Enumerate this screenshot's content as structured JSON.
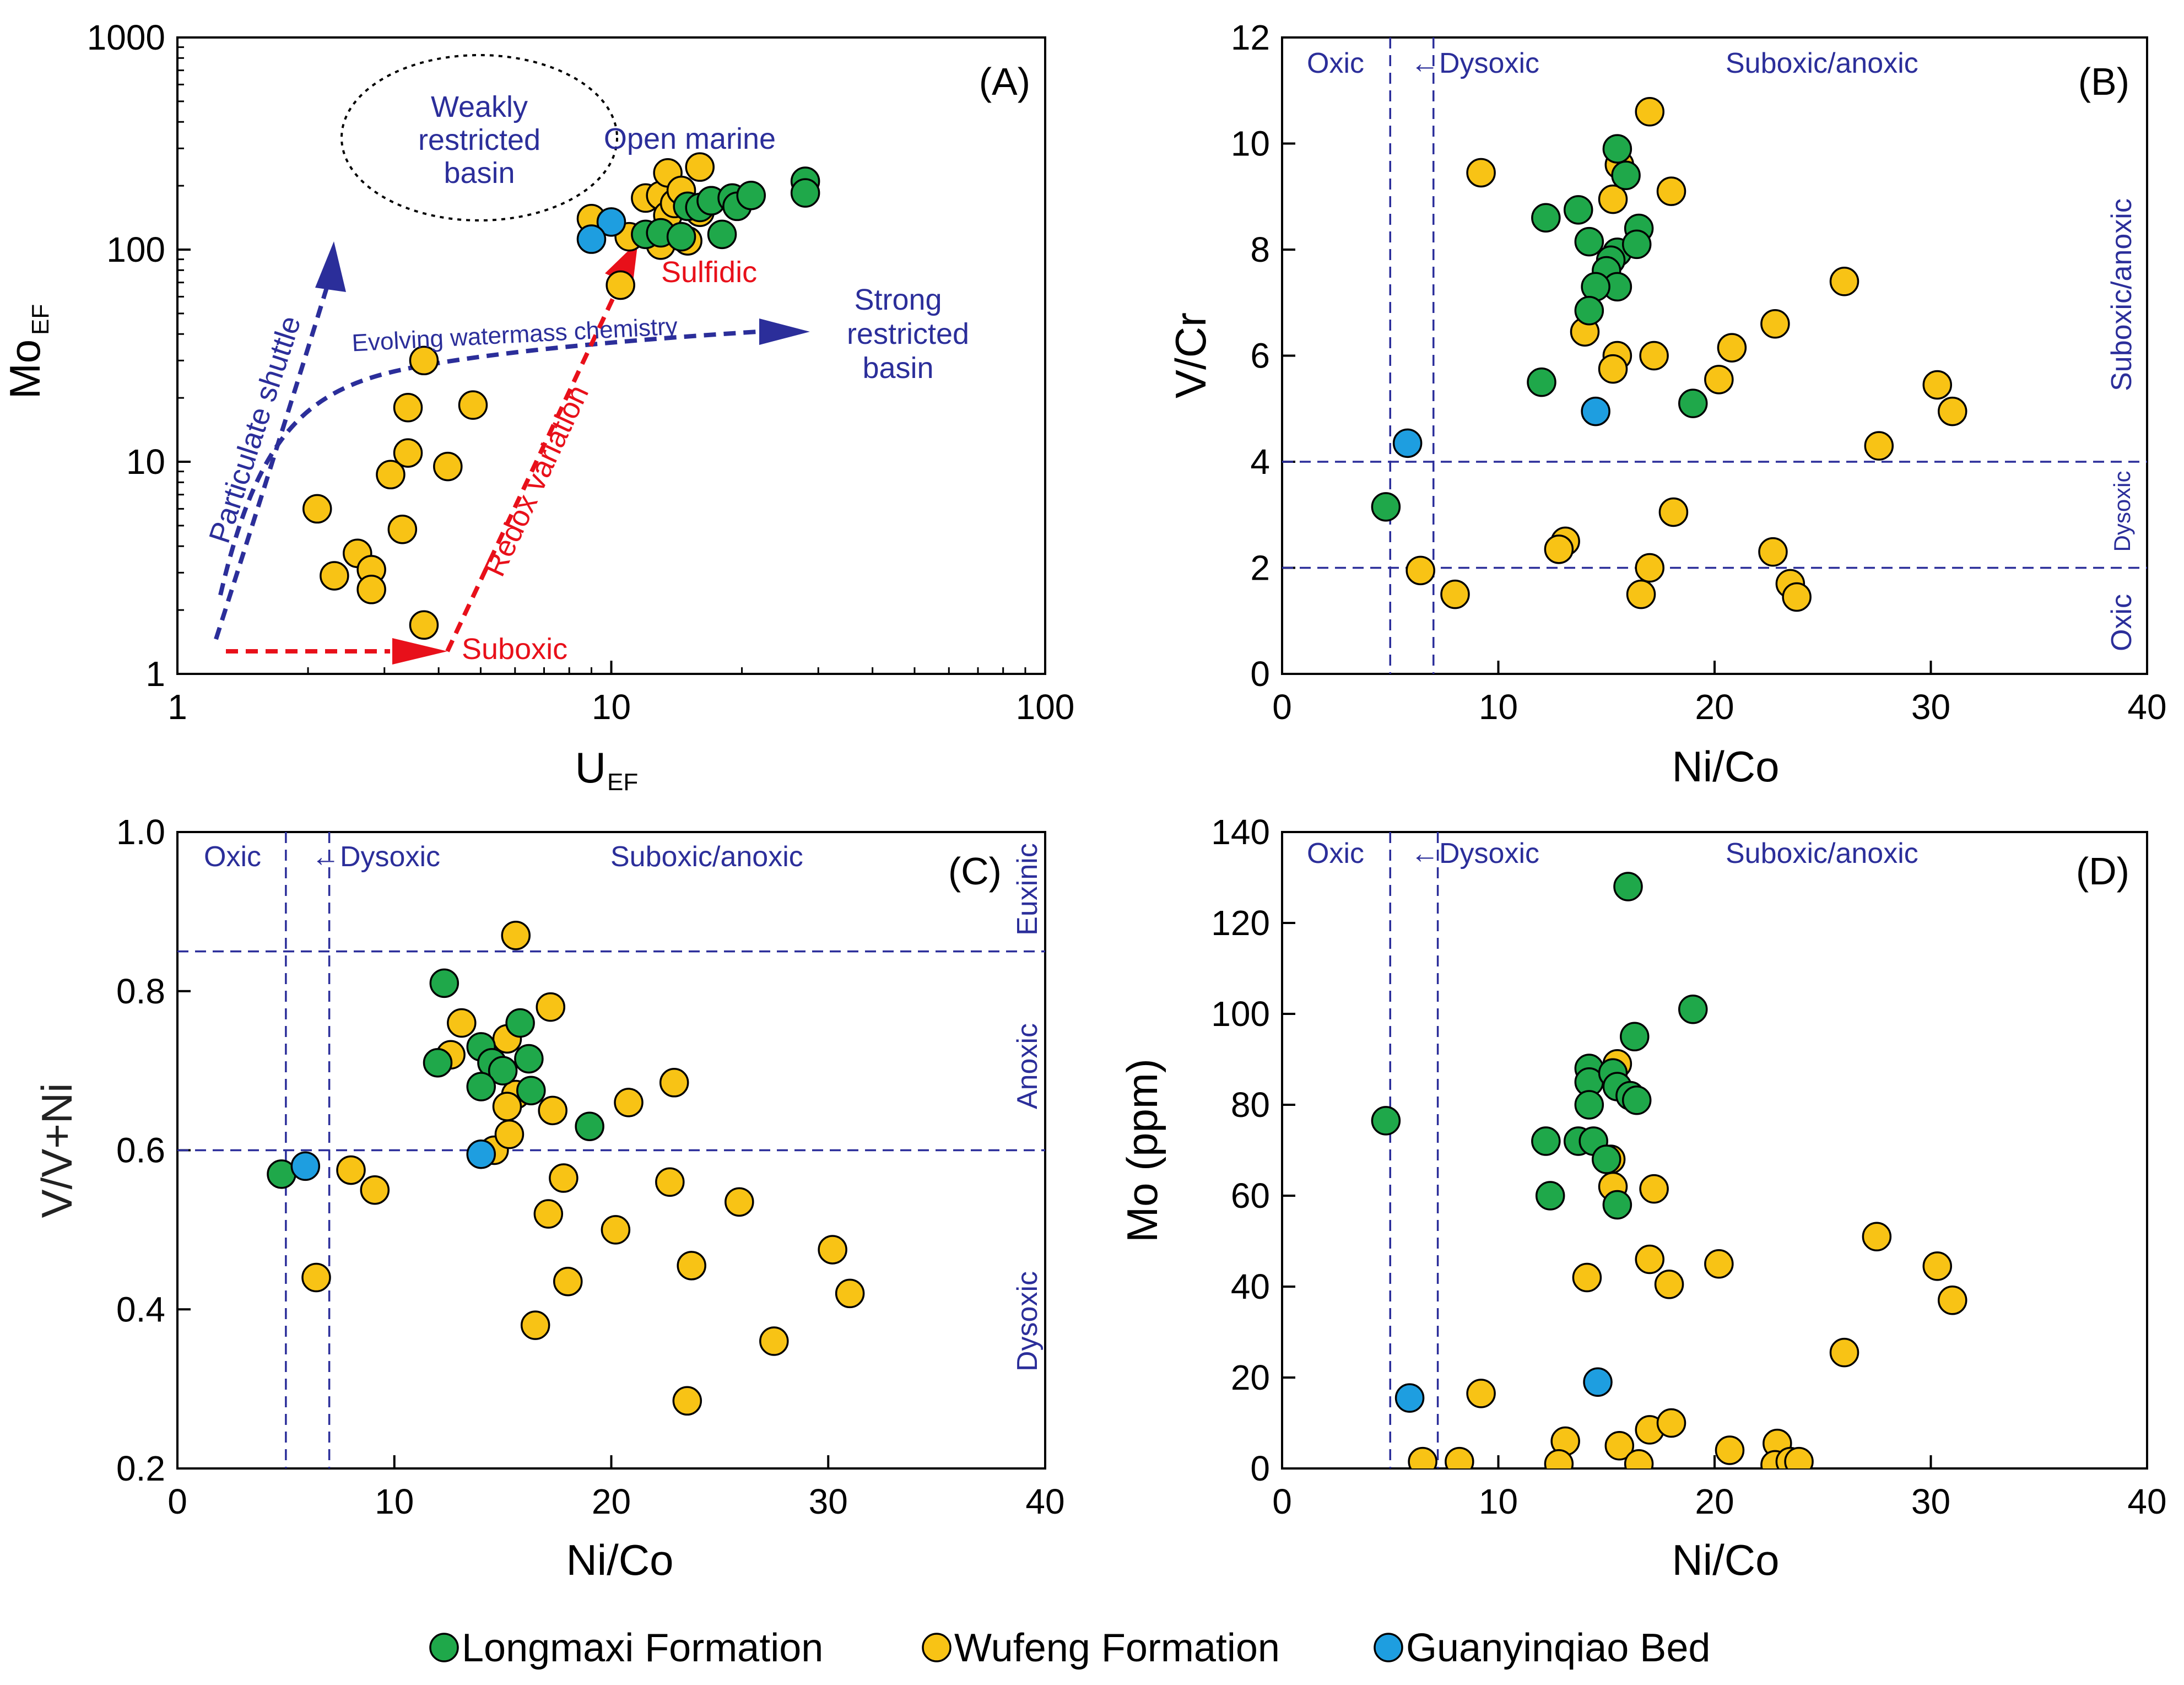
{
  "colors": {
    "Longmaxi Formation": "#1fa84a",
    "Wufeng Formation": "#f8c315",
    "Guanyinqiao Bed": "#1e9ee0",
    "guide": "#2b2e9a",
    "red": "#e8101a"
  },
  "legend": {
    "items": [
      "Longmaxi Formation",
      "Wufeng Formation",
      "Guanyinqiao Bed"
    ]
  },
  "chart_data": [
    {
      "id": "A",
      "panel_label": "(A)",
      "type": "scatter",
      "xscale": "log",
      "yscale": "log",
      "xlabel": "U",
      "xlabel_sub": "EF",
      "ylabel": "Mo",
      "ylabel_sub": "EF",
      "xlim": [
        1,
        100
      ],
      "ylim": [
        1,
        1000
      ],
      "xticks": [
        1,
        10,
        100
      ],
      "yticks": [
        1,
        10,
        100,
        1000
      ],
      "annotations": {
        "weakly": [
          "Weakly",
          "restricted",
          "basin"
        ],
        "open_marine": "Open marine",
        "strong": [
          "Strong",
          "restricted",
          "basin"
        ],
        "evolving": "Evolving watermass chemistry",
        "particulate": "Particulate shuttle",
        "redox": "Redox variation",
        "sulfidic": "Sulfidic",
        "suboxic": "Suboxic"
      },
      "series": [
        {
          "name": "Longmaxi Formation",
          "points": [
            [
              12,
              118
            ],
            [
              13,
              120
            ],
            [
              14.5,
              115
            ],
            [
              15,
              160
            ],
            [
              16,
              158
            ],
            [
              17,
              170
            ],
            [
              18,
              118
            ],
            [
              19,
              175
            ],
            [
              19.5,
              160
            ],
            [
              21,
              180
            ],
            [
              28,
              210
            ],
            [
              28,
              185
            ]
          ]
        },
        {
          "name": "Wufeng Formation",
          "points": [
            [
              10.5,
              68
            ],
            [
              9,
              140
            ],
            [
              12,
              175
            ],
            [
              13,
              180
            ],
            [
              13.5,
              145
            ],
            [
              13.5,
              230
            ],
            [
              14,
              165
            ],
            [
              14.5,
              190
            ],
            [
              15,
              110
            ],
            [
              16,
              150
            ],
            [
              16,
              245
            ],
            [
              13,
              105
            ],
            [
              11,
              115
            ],
            [
              17,
              170
            ],
            [
              3.7,
              30
            ],
            [
              3.4,
              18
            ],
            [
              4.8,
              18.5
            ],
            [
              3.4,
              11
            ],
            [
              3.1,
              8.7
            ],
            [
              4.2,
              9.5
            ],
            [
              2.1,
              6
            ],
            [
              3.3,
              4.8
            ],
            [
              2.6,
              3.7
            ],
            [
              2.3,
              2.9
            ],
            [
              2.8,
              3.1
            ],
            [
              2.8,
              2.5
            ],
            [
              3.7,
              1.7
            ]
          ]
        },
        {
          "name": "Guanyinqiao Bed",
          "points": [
            [
              10,
              135
            ],
            [
              9,
              112
            ]
          ]
        }
      ]
    },
    {
      "id": "B",
      "panel_label": "(B)",
      "type": "scatter",
      "xlabel": "Ni/Co",
      "ylabel": "V/Cr",
      "xlim": [
        0,
        40
      ],
      "ylim": [
        0,
        12
      ],
      "xticks": [
        0,
        10,
        20,
        30,
        40
      ],
      "yticks": [
        0,
        2,
        4,
        6,
        8,
        10,
        12
      ],
      "vlines": [
        5,
        7
      ],
      "hlines": [
        4,
        2
      ],
      "zones": {
        "oxic": "Oxic",
        "dysoxic": "←Dysoxic",
        "suboxic": "Suboxic/anoxic"
      },
      "right_zones": {
        "upper": "Suboxic/anoxic",
        "middle": "Dysoxic",
        "lower": "Oxic"
      },
      "series": [
        {
          "name": "Longmaxi Formation",
          "points": [
            [
              12.2,
              8.6
            ],
            [
              13.7,
              8.75
            ],
            [
              15.5,
              9.9
            ],
            [
              15.9,
              9.4
            ],
            [
              14.2,
              8.15
            ],
            [
              15.5,
              7.95
            ],
            [
              15.2,
              7.8
            ],
            [
              15,
              7.6
            ],
            [
              16.5,
              8.4
            ],
            [
              16.4,
              8.1
            ],
            [
              15.5,
              7.3
            ],
            [
              14.5,
              7.3
            ],
            [
              14.2,
              6.85
            ],
            [
              12,
              5.5
            ],
            [
              19,
              5.1
            ],
            [
              4.8,
              3.15
            ]
          ]
        },
        {
          "name": "Wufeng Formation",
          "points": [
            [
              9.2,
              9.45
            ],
            [
              17,
              10.6
            ],
            [
              15.6,
              9.6
            ],
            [
              15.3,
              8.95
            ],
            [
              18,
              9.1
            ],
            [
              26,
              7.4
            ],
            [
              14,
              6.45
            ],
            [
              15.5,
              6.0
            ],
            [
              15.3,
              5.75
            ],
            [
              17.2,
              6.0
            ],
            [
              20.8,
              6.15
            ],
            [
              22.8,
              6.6
            ],
            [
              20.2,
              5.55
            ],
            [
              30.3,
              5.45
            ],
            [
              31,
              4.95
            ],
            [
              27.6,
              4.3
            ],
            [
              13.1,
              2.5
            ],
            [
              12.8,
              2.35
            ],
            [
              18.1,
              3.05
            ],
            [
              6.4,
              1.95
            ],
            [
              8,
              1.5
            ],
            [
              16.6,
              1.5
            ],
            [
              17,
              2.0
            ],
            [
              22.7,
              2.3
            ],
            [
              23.5,
              1.7
            ],
            [
              23.8,
              1.45
            ]
          ]
        },
        {
          "name": "Guanyinqiao Bed",
          "points": [
            [
              14.5,
              4.95
            ],
            [
              5.8,
              4.35
            ]
          ]
        }
      ]
    },
    {
      "id": "C",
      "panel_label": "(C)",
      "type": "scatter",
      "xlabel": "Ni/Co",
      "ylabel": "V/V+Ni",
      "xlim": [
        0,
        40
      ],
      "ylim": [
        0.2,
        1.0
      ],
      "xticks": [
        0,
        10,
        20,
        30,
        40
      ],
      "yticks": [
        0.2,
        0.4,
        0.6,
        0.8,
        1.0
      ],
      "ytick_labels": [
        "0.2",
        "0.4",
        "0.6",
        "0.8",
        "1.0"
      ],
      "vlines": [
        5,
        7
      ],
      "hlines": [
        0.85,
        0.6
      ],
      "zones": {
        "oxic": "Oxic",
        "dysoxic": "←Dysoxic",
        "suboxic": "Suboxic/anoxic"
      },
      "right_zones": {
        "upper": "Euxinic",
        "middle": "Anoxic",
        "lower": "Dysoxic"
      },
      "series": [
        {
          "name": "Longmaxi Formation",
          "points": [
            [
              12.3,
              0.81
            ],
            [
              12,
              0.71
            ],
            [
              14,
              0.73
            ],
            [
              14.5,
              0.71
            ],
            [
              15,
              0.7
            ],
            [
              15.8,
              0.76
            ],
            [
              16.2,
              0.715
            ],
            [
              14,
              0.68
            ],
            [
              16.3,
              0.675
            ],
            [
              19,
              0.63
            ],
            [
              4.8,
              0.57
            ]
          ]
        },
        {
          "name": "Wufeng Formation",
          "points": [
            [
              15.6,
              0.87
            ],
            [
              13.1,
              0.76
            ],
            [
              17.2,
              0.78
            ],
            [
              12.6,
              0.72
            ],
            [
              15.2,
              0.74
            ],
            [
              15.6,
              0.67
            ],
            [
              15.2,
              0.655
            ],
            [
              17.3,
              0.65
            ],
            [
              20.8,
              0.66
            ],
            [
              14.6,
              0.6
            ],
            [
              15.3,
              0.62
            ],
            [
              8,
              0.575
            ],
            [
              9.1,
              0.55
            ],
            [
              17.8,
              0.565
            ],
            [
              22.7,
              0.56
            ],
            [
              25.9,
              0.535
            ],
            [
              22.9,
              0.685
            ],
            [
              17.1,
              0.52
            ],
            [
              20.2,
              0.5
            ],
            [
              30.2,
              0.475
            ],
            [
              31,
              0.42
            ],
            [
              23.7,
              0.455
            ],
            [
              18,
              0.435
            ],
            [
              6.4,
              0.44
            ],
            [
              16.5,
              0.38
            ],
            [
              27.5,
              0.36
            ],
            [
              23.5,
              0.285
            ]
          ]
        },
        {
          "name": "Guanyinqiao Bed",
          "points": [
            [
              5.9,
              0.58
            ],
            [
              14,
              0.595
            ]
          ]
        }
      ]
    },
    {
      "id": "D",
      "panel_label": "(D)",
      "type": "scatter",
      "xlabel": "Ni/Co",
      "ylabel": "Mo (ppm)",
      "xlim": [
        0,
        40
      ],
      "ylim": [
        0,
        140
      ],
      "xticks": [
        0,
        10,
        20,
        30,
        40
      ],
      "yticks": [
        0,
        20,
        40,
        60,
        80,
        100,
        120,
        140
      ],
      "vlines": [
        5,
        7.2
      ],
      "hlines": [],
      "zones": {
        "oxic": "Oxic",
        "dysoxic": "←Dysoxic",
        "suboxic": "Suboxic/anoxic"
      },
      "series": [
        {
          "name": "Longmaxi Formation",
          "points": [
            [
              16,
              128
            ],
            [
              19,
              101
            ],
            [
              16.3,
              95
            ],
            [
              14.2,
              88
            ],
            [
              14.2,
              85
            ],
            [
              15.3,
              87
            ],
            [
              15.5,
              84
            ],
            [
              16.1,
              82
            ],
            [
              16.4,
              81
            ],
            [
              14.2,
              80
            ],
            [
              12.2,
              72
            ],
            [
              13.7,
              72
            ],
            [
              14.4,
              72
            ],
            [
              15,
              68
            ],
            [
              12.4,
              60
            ],
            [
              15.5,
              58
            ],
            [
              4.8,
              76.5
            ]
          ]
        },
        {
          "name": "Wufeng Formation",
          "points": [
            [
              15.5,
              89
            ],
            [
              15.2,
              68
            ],
            [
              15.3,
              62
            ],
            [
              17.2,
              61.5
            ],
            [
              27.5,
              51
            ],
            [
              17,
              46
            ],
            [
              20.2,
              45
            ],
            [
              30.3,
              44.5
            ],
            [
              14.1,
              42
            ],
            [
              17.9,
              40.5
            ],
            [
              31,
              37
            ],
            [
              26,
              25.5
            ],
            [
              9.2,
              16.5
            ],
            [
              13.1,
              6
            ],
            [
              15.6,
              5
            ],
            [
              17,
              8.5
            ],
            [
              18,
              10
            ],
            [
              20.7,
              4
            ],
            [
              22.9,
              5.5
            ],
            [
              6.5,
              1.5
            ],
            [
              8.2,
              1.5
            ],
            [
              12.8,
              1
            ],
            [
              16.5,
              1
            ],
            [
              22.8,
              0.8
            ],
            [
              23.5,
              1.5
            ],
            [
              23.9,
              1.5
            ]
          ]
        },
        {
          "name": "Guanyinqiao Bed",
          "points": [
            [
              14.6,
              19
            ],
            [
              5.9,
              15.5
            ]
          ]
        }
      ]
    }
  ]
}
